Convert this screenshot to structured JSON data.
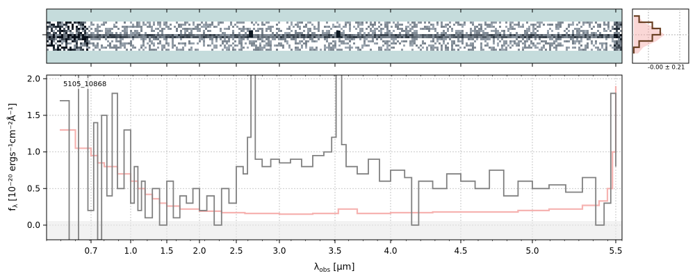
{
  "figure": {
    "object_label": "5105_10868",
    "profile_label": "-0.00 ± 0.21"
  },
  "chart_data": [
    {
      "type": "heatmap",
      "panel": "2D spectrum",
      "title": "",
      "colormap": [
        "#c5dcdc",
        "#ffffff",
        "#0d1822"
      ],
      "trace_row": "center",
      "bright_blobs_um": [
        2.67,
        3.53
      ],
      "noisy_edges_um": [
        [
          0.6,
          0.78
        ],
        [
          5.38,
          5.5
        ]
      ]
    },
    {
      "type": "line",
      "panel": "cross-dispersion profile",
      "label": "-0.00 ± 0.21",
      "profile_x": [
        0,
        0.2,
        0.7,
        1.0,
        0.7,
        0.2,
        0
      ],
      "profile_y": [
        -3,
        -2,
        -1,
        0,
        1,
        2,
        3
      ]
    },
    {
      "type": "line",
      "panel": "1D spectrum",
      "xlabel": "λobs [μm]",
      "ylabel": "fλ [10⁻²⁰ ergs⁻¹cm⁻²Å⁻¹]",
      "xlim": [
        0.6,
        5.52
      ],
      "ylim": [
        -0.2,
        2.05
      ],
      "x_ticks": [
        "0.7",
        "1.0",
        "1.5",
        "2.0",
        "2.5",
        "3.0",
        "3.5",
        "4.0",
        "4.5",
        "5.0",
        "5.5"
      ],
      "x_tick_values": [
        0.7,
        1.0,
        1.5,
        2.0,
        2.5,
        3.0,
        3.5,
        4.0,
        4.5,
        5.0,
        5.5
      ],
      "y_ticks": [
        "0.0",
        "0.5",
        "1.0",
        "1.5",
        "2.0"
      ],
      "y_tick_values": [
        0.0,
        0.5,
        1.0,
        1.5,
        2.0
      ],
      "grid": true,
      "series": [
        {
          "color": "#808080",
          "x": [
            0.6,
            0.63,
            0.66,
            0.69,
            0.72,
            0.75,
            0.78,
            0.82,
            0.86,
            0.9,
            0.95,
            1.0,
            1.05,
            1.1,
            1.15,
            1.2,
            1.3,
            1.4,
            1.5,
            1.6,
            1.7,
            1.8,
            1.9,
            2.0,
            2.1,
            2.2,
            2.3,
            2.4,
            2.5,
            2.58,
            2.63,
            2.67,
            2.72,
            2.8,
            2.9,
            3.0,
            3.1,
            3.2,
            3.3,
            3.4,
            3.47,
            3.51,
            3.53,
            3.56,
            3.6,
            3.7,
            3.8,
            3.9,
            4.0,
            4.1,
            4.15,
            4.2,
            4.3,
            4.4,
            4.5,
            4.6,
            4.7,
            4.8,
            4.9,
            5.0,
            5.1,
            5.2,
            5.3,
            5.38,
            5.43,
            5.47,
            5.5
          ],
          "y": [
            1.7,
            -0.3,
            2.1,
            0.2,
            1.4,
            -0.2,
            1.5,
            0.4,
            1.8,
            0.5,
            1.3,
            0.3,
            0.8,
            0.2,
            0.6,
            0.1,
            0.5,
            0.0,
            0.6,
            0.1,
            0.4,
            0.3,
            0.5,
            0.2,
            0.4,
            0.0,
            0.5,
            0.3,
            0.8,
            0.7,
            1.2,
            2.1,
            0.9,
            0.8,
            0.9,
            0.85,
            0.9,
            0.8,
            0.95,
            1.0,
            1.2,
            2.1,
            2.1,
            1.1,
            0.8,
            0.7,
            0.9,
            0.6,
            0.75,
            0.65,
            0.0,
            0.6,
            0.5,
            0.7,
            0.6,
            0.5,
            0.75,
            0.4,
            0.6,
            0.5,
            0.55,
            0.45,
            0.65,
            0.0,
            0.3,
            1.8,
            0.8
          ]
        },
        {
          "color": "#f4a6a3",
          "x": [
            0.6,
            0.65,
            0.7,
            0.75,
            0.8,
            0.9,
            1.0,
            1.1,
            1.2,
            1.3,
            1.4,
            1.5,
            1.7,
            2.0,
            2.3,
            2.6,
            3.0,
            3.3,
            3.53,
            3.7,
            4.0,
            4.3,
            4.6,
            4.9,
            5.1,
            5.3,
            5.4,
            5.45,
            5.48,
            5.5
          ],
          "y": [
            1.3,
            1.05,
            0.95,
            0.85,
            0.8,
            0.7,
            0.6,
            0.5,
            0.42,
            0.36,
            0.3,
            0.26,
            0.22,
            0.19,
            0.17,
            0.16,
            0.15,
            0.16,
            0.22,
            0.16,
            0.17,
            0.18,
            0.18,
            0.2,
            0.22,
            0.27,
            0.33,
            0.5,
            1.0,
            1.9
          ]
        }
      ]
    }
  ]
}
